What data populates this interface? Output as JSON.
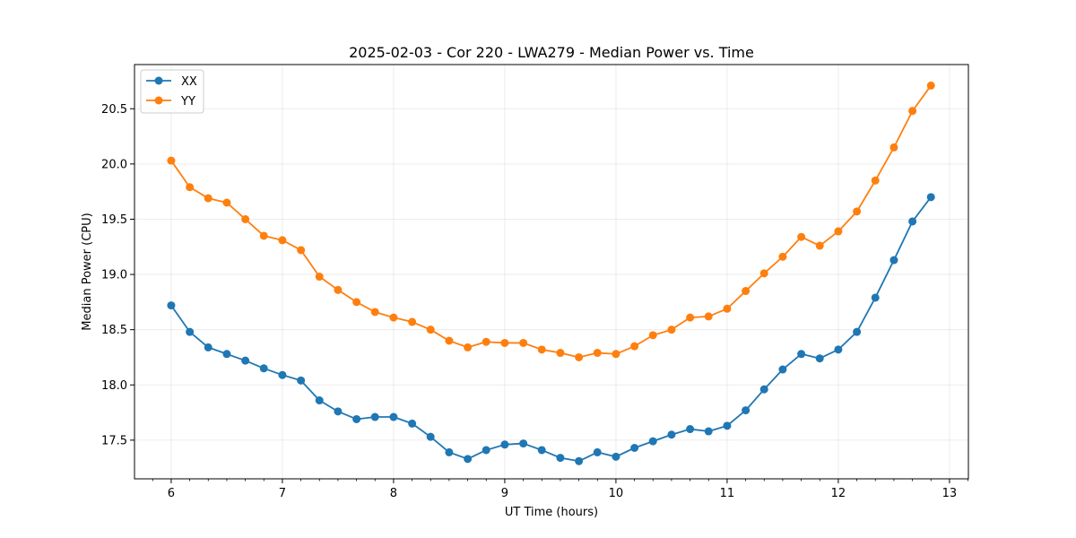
{
  "chart_data": {
    "type": "line",
    "title": "2025-02-03 - Cor 220 - LWA279 - Median Power vs. Time",
    "xlabel": "UT Time (hours)",
    "ylabel": "Median Power (CPU)",
    "xlim": [
      5.67,
      13.17
    ],
    "ylim": [
      17.15,
      20.9
    ],
    "xticks": [
      6,
      7,
      8,
      9,
      10,
      11,
      12,
      13
    ],
    "xtick_labels": [
      "6",
      "7",
      "8",
      "9",
      "10",
      "11",
      "12",
      "13"
    ],
    "yticks": [
      17.5,
      18.0,
      18.5,
      19.0,
      19.5,
      20.0,
      20.5
    ],
    "ytick_labels": [
      "17.5",
      "18.0",
      "18.5",
      "19.0",
      "19.5",
      "20.0",
      "20.5"
    ],
    "grid": true,
    "legend_position": "top-left",
    "x": [
      6.0,
      6.167,
      6.333,
      6.5,
      6.667,
      6.833,
      7.0,
      7.167,
      7.333,
      7.5,
      7.667,
      7.833,
      8.0,
      8.167,
      8.333,
      8.5,
      8.667,
      8.833,
      9.0,
      9.167,
      9.333,
      9.5,
      9.667,
      9.833,
      10.0,
      10.167,
      10.333,
      10.5,
      10.667,
      10.833,
      11.0,
      11.167,
      11.333,
      11.5,
      11.667,
      11.833,
      12.0,
      12.167,
      12.333,
      12.5,
      12.667,
      12.833
    ],
    "series": [
      {
        "name": "XX",
        "color": "#1f77b4",
        "values": [
          18.72,
          18.48,
          18.34,
          18.28,
          18.22,
          18.15,
          18.09,
          18.04,
          17.86,
          17.76,
          17.69,
          17.71,
          17.71,
          17.65,
          17.53,
          17.39,
          17.33,
          17.41,
          17.46,
          17.47,
          17.41,
          17.34,
          17.31,
          17.39,
          17.35,
          17.43,
          17.49,
          17.55,
          17.6,
          17.58,
          17.63,
          17.77,
          17.96,
          18.14,
          18.28,
          18.24,
          18.32,
          18.48,
          18.79,
          19.13,
          19.48,
          19.7
        ]
      },
      {
        "name": "YY",
        "color": "#ff7f0e",
        "values": [
          20.03,
          19.79,
          19.69,
          19.65,
          19.5,
          19.35,
          19.31,
          19.22,
          18.98,
          18.86,
          18.75,
          18.66,
          18.61,
          18.57,
          18.5,
          18.4,
          18.34,
          18.39,
          18.38,
          18.38,
          18.32,
          18.29,
          18.25,
          18.29,
          18.28,
          18.35,
          18.45,
          18.5,
          18.61,
          18.62,
          18.69,
          18.85,
          19.01,
          19.16,
          19.34,
          19.26,
          19.39,
          19.57,
          19.85,
          20.15,
          20.48,
          20.71
        ]
      }
    ]
  }
}
